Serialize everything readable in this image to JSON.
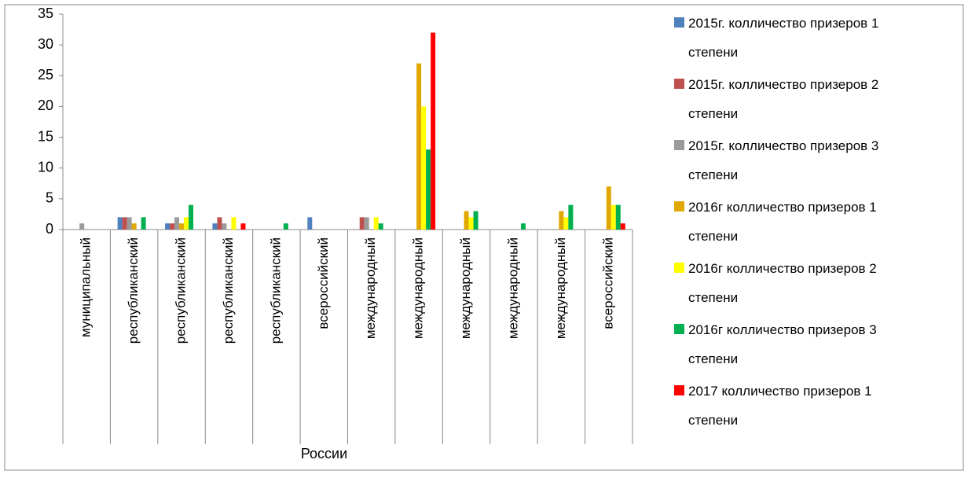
{
  "chart_data": {
    "type": "bar",
    "categories": [
      "муниципальный",
      "республиканский",
      "республиканский",
      "республиканский",
      "республиканский",
      "всероссийский",
      "международный",
      "международный",
      "международный",
      "международный",
      "международный",
      "всероссийский"
    ],
    "series": [
      {
        "name": "2015г. колличество призеров 1 степени",
        "color": "#4f81bd",
        "values": [
          0,
          2,
          1,
          1,
          0,
          2,
          0,
          0,
          0,
          0,
          0,
          0
        ]
      },
      {
        "name": "2015г. колличество призеров 2 степени",
        "color": "#c0504d",
        "values": [
          0,
          2,
          1,
          2,
          0,
          0,
          2,
          0,
          0,
          0,
          0,
          0
        ]
      },
      {
        "name": "2015г. колличество призеров 3 степени",
        "color": "#9b9b9b",
        "values": [
          1,
          2,
          2,
          1,
          0,
          0,
          2,
          0,
          0,
          0,
          0,
          0
        ]
      },
      {
        "name": "2016г колличество призеров 1 степени",
        "color": "#e0a800",
        "values": [
          0,
          1,
          1,
          0,
          0,
          0,
          0,
          27,
          3,
          0,
          3,
          7
        ]
      },
      {
        "name": "2016г колличество призеров 2 степени",
        "color": "#ffff00",
        "values": [
          0,
          0,
          2,
          2,
          0,
          0,
          2,
          20,
          2,
          0,
          2,
          4
        ]
      },
      {
        "name": "2016г колличество призеров 3 степени",
        "color": "#00b050",
        "values": [
          0,
          2,
          4,
          0,
          1,
          0,
          1,
          13,
          3,
          1,
          4,
          4
        ]
      },
      {
        "name": "2017 колличество призеров 1 степени",
        "color": "#ff0000",
        "values": [
          0,
          0,
          0,
          1,
          0,
          0,
          0,
          32,
          0,
          0,
          0,
          1
        ]
      }
    ],
    "annotations": [
      "России"
    ],
    "ylim": [
      0,
      35
    ],
    "yticks": [
      0,
      5,
      10,
      15,
      20,
      25,
      30,
      35
    ],
    "grid": false,
    "legend": "right"
  }
}
